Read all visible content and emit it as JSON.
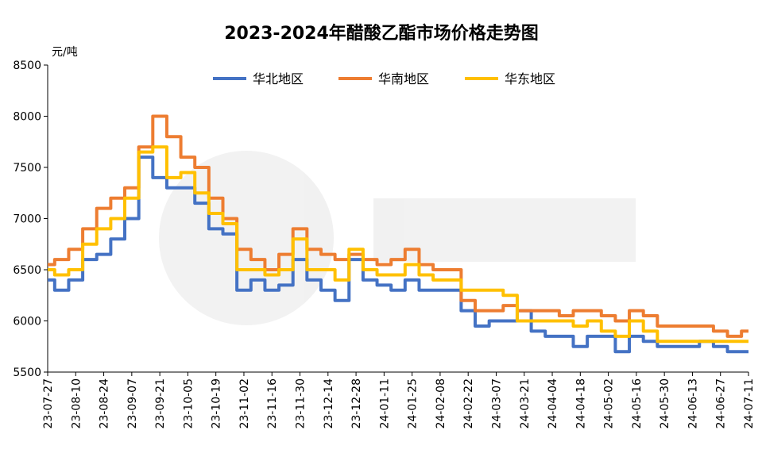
{
  "chart_data": {
    "type": "line",
    "title": "2023-2024年醋酸乙酯市场价格走势图",
    "y_unit": "元/吨",
    "ylim": [
      5500,
      8500
    ],
    "yticks": [
      5500,
      6000,
      6500,
      7000,
      7500,
      8000,
      8500
    ],
    "x_ticks": [
      "23-07-27",
      "23-08-10",
      "23-08-24",
      "23-09-07",
      "23-09-21",
      "23-10-05",
      "23-10-19",
      "23-11-02",
      "23-11-16",
      "23-11-30",
      "23-12-14",
      "23-12-28",
      "24-01-11",
      "24-01-25",
      "24-02-08",
      "24-02-22",
      "24-03-07",
      "24-03-21",
      "24-04-04",
      "24-04-18",
      "24-05-02",
      "24-05-16",
      "24-05-30",
      "24-06-13",
      "24-06-27",
      "24-07-11"
    ],
    "x": [
      "23-07-27",
      "23-08-03",
      "23-08-10",
      "23-08-17",
      "23-08-24",
      "23-08-31",
      "23-09-07",
      "23-09-14",
      "23-09-21",
      "23-09-28",
      "23-10-05",
      "23-10-12",
      "23-10-19",
      "23-10-26",
      "23-11-02",
      "23-11-09",
      "23-11-16",
      "23-11-23",
      "23-11-30",
      "23-12-07",
      "23-12-14",
      "23-12-21",
      "23-12-28",
      "24-01-04",
      "24-01-11",
      "24-01-18",
      "24-01-25",
      "24-02-01",
      "24-02-08",
      "24-02-15",
      "24-02-22",
      "24-02-29",
      "24-03-07",
      "24-03-14",
      "24-03-21",
      "24-03-28",
      "24-04-04",
      "24-04-11",
      "24-04-18",
      "24-04-25",
      "24-05-02",
      "24-05-09",
      "24-05-16",
      "24-05-23",
      "24-05-30",
      "24-06-06",
      "24-06-13",
      "24-06-20",
      "24-06-27",
      "24-07-04",
      "24-07-11"
    ],
    "grid": false,
    "legend": "top-center",
    "series": [
      {
        "name": "华北地区",
        "color": "#4472C4",
        "values": [
          6400,
          6300,
          6400,
          6600,
          6650,
          6800,
          7000,
          7600,
          7400,
          7300,
          7300,
          7150,
          6900,
          6850,
          6300,
          6400,
          6300,
          6350,
          6600,
          6400,
          6300,
          6200,
          6600,
          6400,
          6350,
          6300,
          6400,
          6300,
          6300,
          6300,
          6100,
          5950,
          6000,
          6000,
          6100,
          5900,
          5850,
          5850,
          5750,
          5850,
          5850,
          5700,
          5850,
          5800,
          5750,
          5750,
          5750,
          5800,
          5750,
          5700,
          5700
        ]
      },
      {
        "name": "华南地区",
        "color": "#ED7D31",
        "values": [
          6550,
          6600,
          6700,
          6900,
          7100,
          7200,
          7300,
          7700,
          8000,
          7800,
          7600,
          7500,
          7200,
          7000,
          6700,
          6600,
          6500,
          6650,
          6900,
          6700,
          6650,
          6600,
          6650,
          6600,
          6550,
          6600,
          6700,
          6550,
          6500,
          6500,
          6200,
          6100,
          6100,
          6150,
          6100,
          6100,
          6100,
          6050,
          6100,
          6100,
          6050,
          6000,
          6100,
          6050,
          5950,
          5950,
          5950,
          5950,
          5900,
          5850,
          5900
        ]
      },
      {
        "name": "华东地区",
        "color": "#FFC000",
        "values": [
          6500,
          6450,
          6500,
          6750,
          6900,
          7000,
          7200,
          7650,
          7700,
          7400,
          7450,
          7250,
          7050,
          6950,
          6500,
          6500,
          6450,
          6500,
          6800,
          6500,
          6500,
          6400,
          6700,
          6500,
          6450,
          6450,
          6550,
          6450,
          6400,
          6400,
          6300,
          6300,
          6300,
          6250,
          6000,
          6000,
          6000,
          6000,
          5950,
          6000,
          5900,
          5850,
          6000,
          5900,
          5800,
          5800,
          5800,
          5800,
          5800,
          5800,
          5800
        ]
      }
    ]
  }
}
